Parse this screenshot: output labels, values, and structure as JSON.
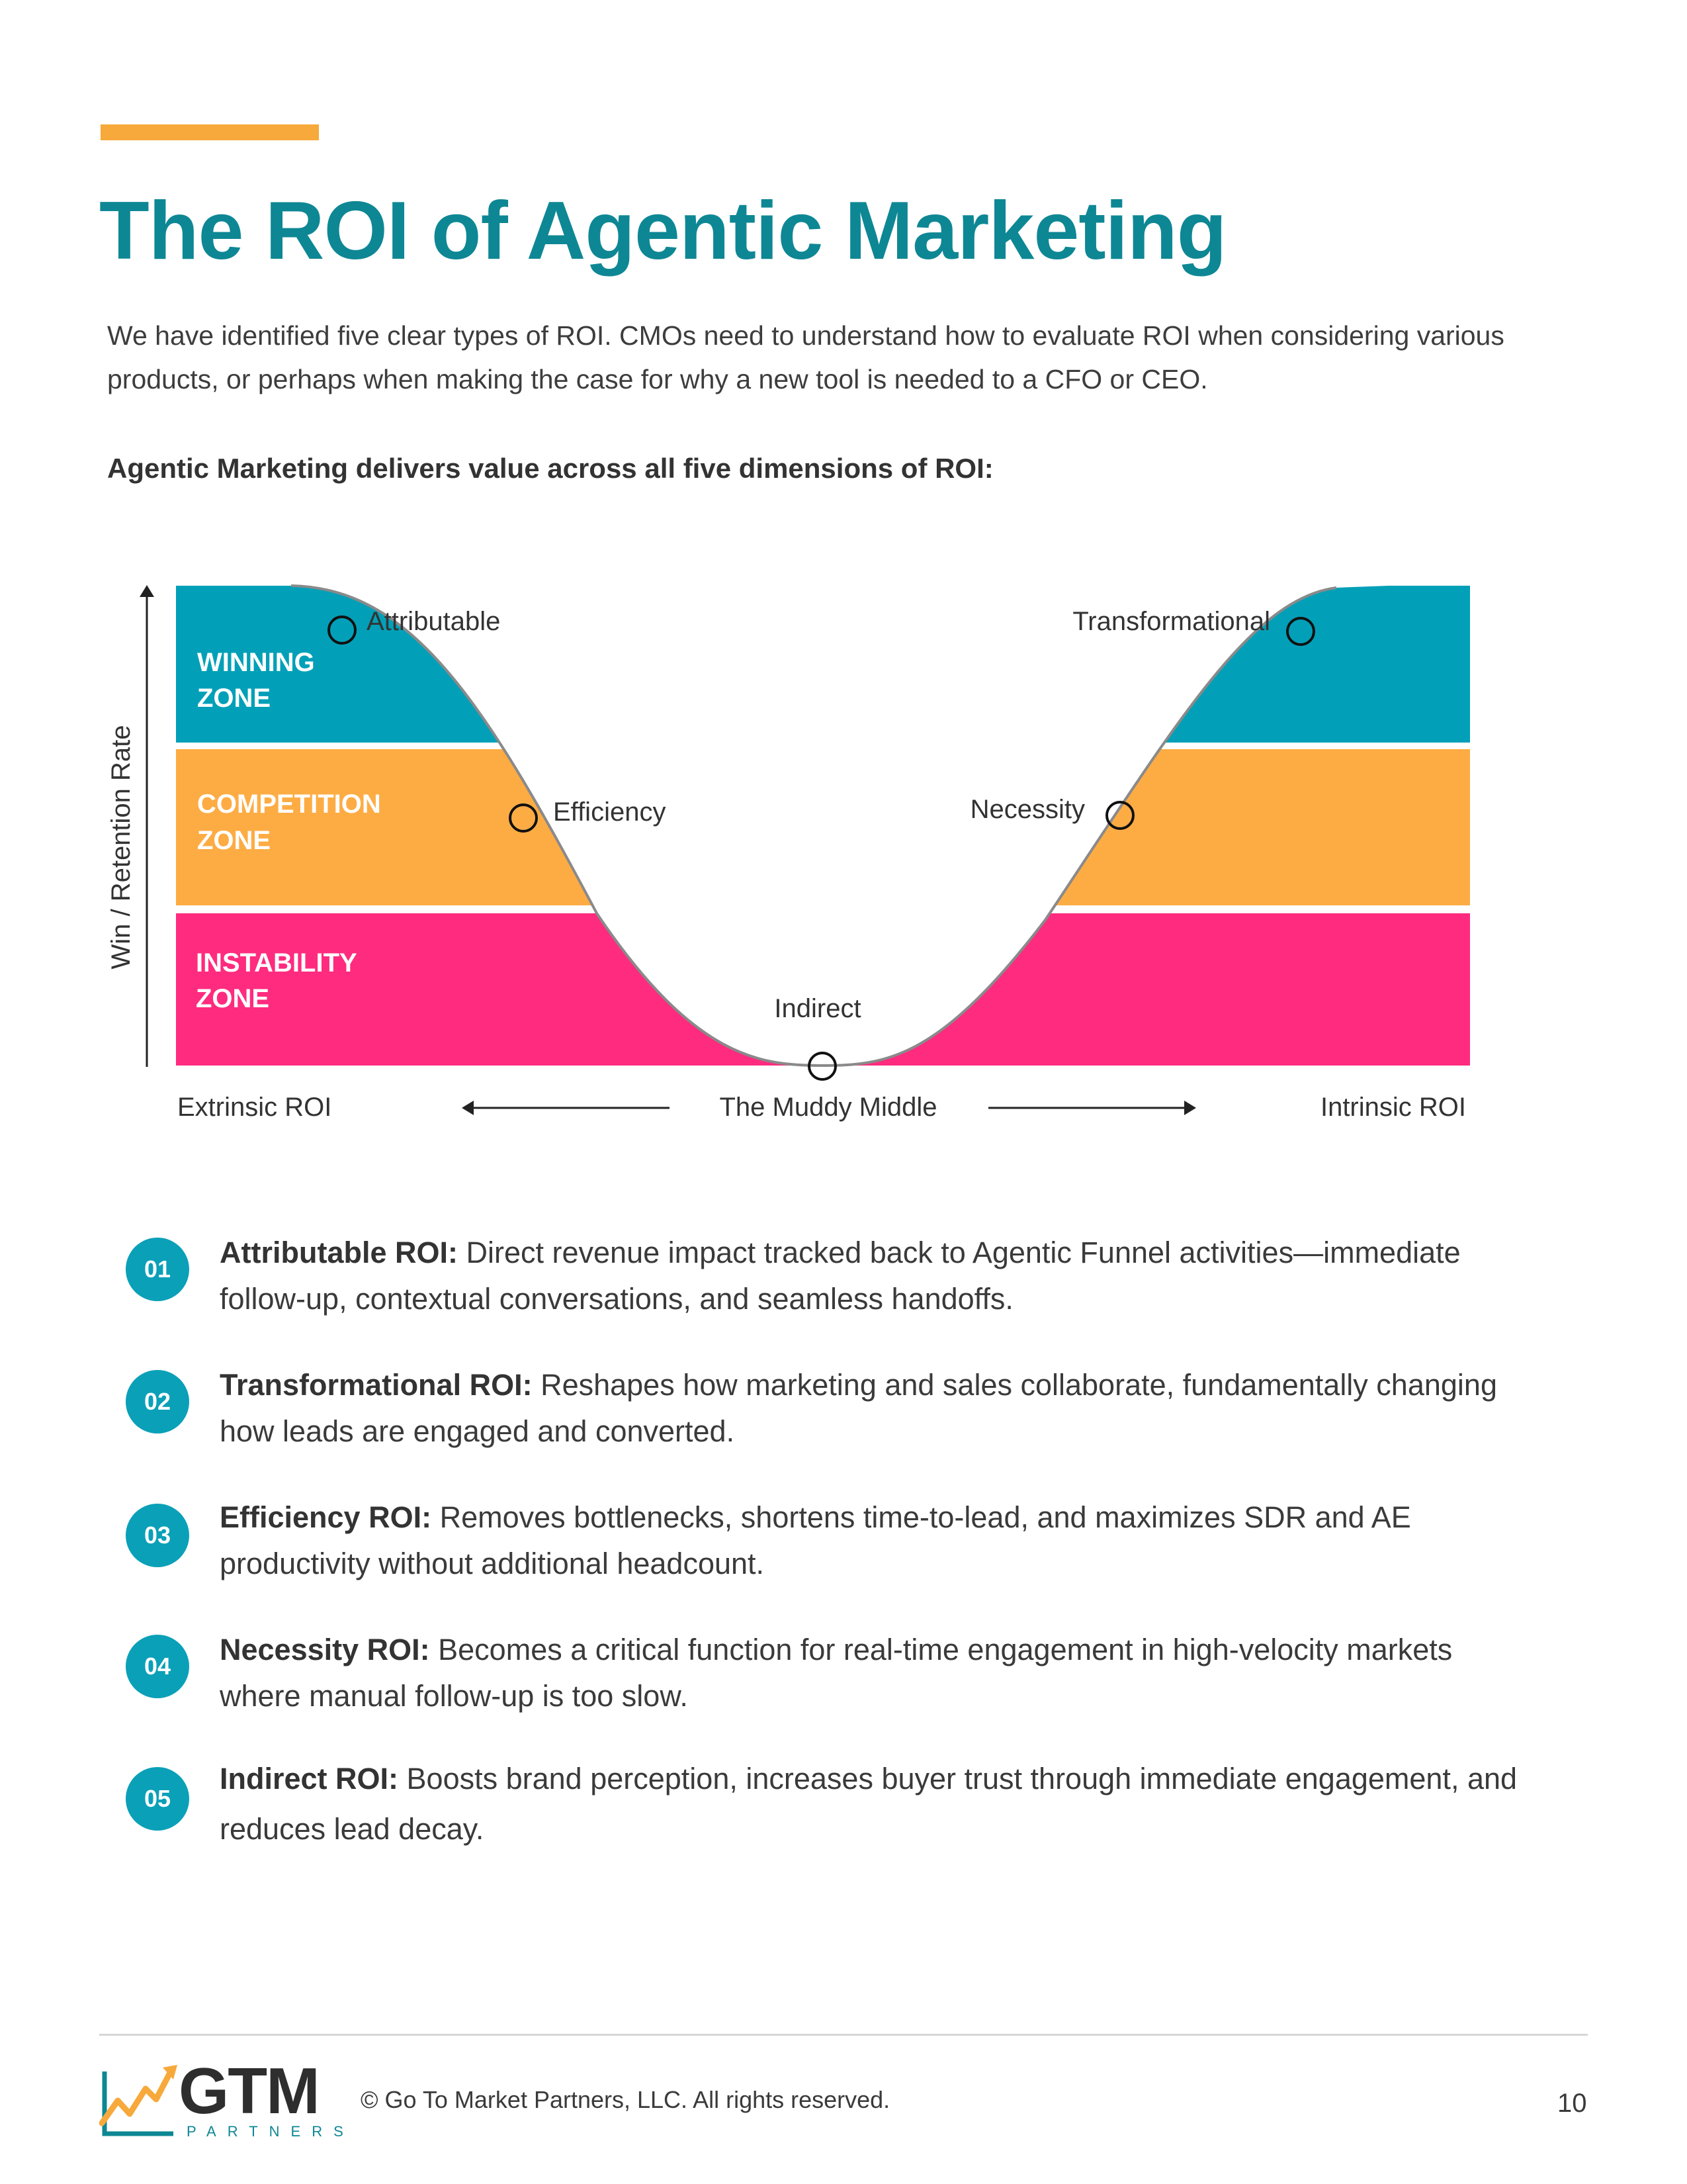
{
  "title": "The ROI of Agentic Marketing",
  "intro": "We have identified five clear types of ROI. CMOs need to understand how to evaluate ROI when considering various products, or perhaps when making the case for why a new tool is needed to a CFO or CEO.",
  "lead": "Agentic Marketing delivers value across all five dimensions of ROI:",
  "diagram": {
    "y_axis_label": "Win / Retention Rate",
    "zones": [
      {
        "line1": "WINNING",
        "line2": "ZONE",
        "color": "#02a0b8"
      },
      {
        "line1": "COMPETITION",
        "line2": "ZONE",
        "color": "#fdac44"
      },
      {
        "line1": "INSTABILITY",
        "line2": "ZONE",
        "color": "#ff2b7f"
      }
    ],
    "points": [
      "Attributable",
      "Efficiency",
      "Indirect",
      "Necessity",
      "Transformational"
    ],
    "x_left": "Extrinsic ROI",
    "x_middle": "The Muddy Middle",
    "x_right": "Intrinsic ROI"
  },
  "items": [
    {
      "num": "01",
      "label": "Attributable ROI:",
      "text": " Direct revenue impact tracked back to Agentic Funnel activities—immediate follow-up, contextual conversations, and seamless handoffs."
    },
    {
      "num": "02",
      "label": "Transformational ROI:",
      "text": " Reshapes how marketing and sales collaborate, fundamentally changing how leads are engaged and converted."
    },
    {
      "num": "03",
      "label": "Efficiency ROI:",
      "text": " Removes bottlenecks, shortens time-to-lead, and maximizes SDR and AE productivity without additional headcount."
    },
    {
      "num": "04",
      "label": "Necessity ROI:",
      "text": " Becomes a critical function for real-time engagement in high-velocity markets where manual follow-up is too slow."
    },
    {
      "num": "05",
      "label": "Indirect ROI:",
      "text": " Boosts brand perception, increases buyer trust through immediate engagement, and reduces lead decay."
    }
  ],
  "footer": {
    "logo_text": "GTM",
    "logo_sub": "PARTNERS",
    "copyright": "© Go To Market Partners, LLC. All rights reserved.",
    "page": "10"
  }
}
